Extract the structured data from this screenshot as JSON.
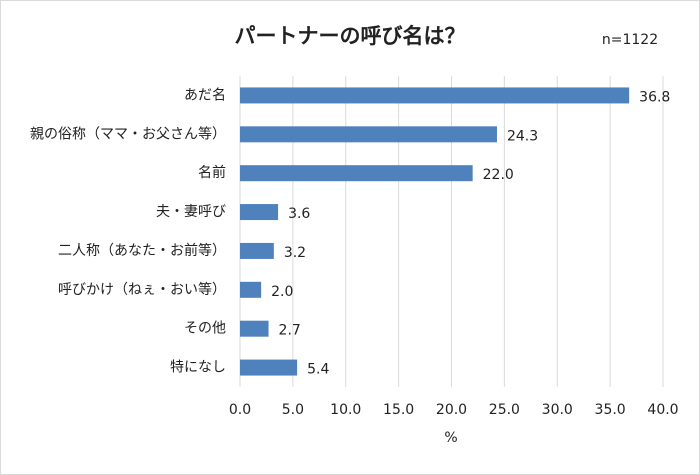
{
  "chart_data": {
    "type": "bar",
    "orientation": "horizontal",
    "title": "パートナーの呼び名は？",
    "subtitle": "n=1122",
    "categories": [
      "あだ名",
      "親の俗称（ママ・お父さん等）",
      "名前",
      "夫・妻呼び",
      "二人称（あなた・お前等）",
      "呼びかけ（ねぇ・おい等）",
      "その他",
      "特になし"
    ],
    "values": [
      36.8,
      24.3,
      22.0,
      3.6,
      3.2,
      2.0,
      2.7,
      5.4
    ],
    "value_labels": [
      "36.8",
      "24.3",
      "22.0",
      "3.6",
      "3.2",
      "2.0",
      "2.7",
      "5.4"
    ],
    "color": "#4f81bd",
    "xlim": [
      0,
      40
    ],
    "xticks": [
      {
        "value": 0,
        "label": "0.0"
      },
      {
        "value": 5,
        "label": "5.0"
      },
      {
        "value": 10,
        "label": "10.0"
      },
      {
        "value": 15,
        "label": "15.0"
      },
      {
        "value": 20,
        "label": "20.0"
      },
      {
        "value": 25,
        "label": "25.0"
      },
      {
        "value": 30,
        "label": "30.0"
      },
      {
        "value": 35,
        "label": "35.0"
      },
      {
        "value": 40,
        "label": "40.0"
      }
    ],
    "xlabel": "%",
    "grid": true
  }
}
